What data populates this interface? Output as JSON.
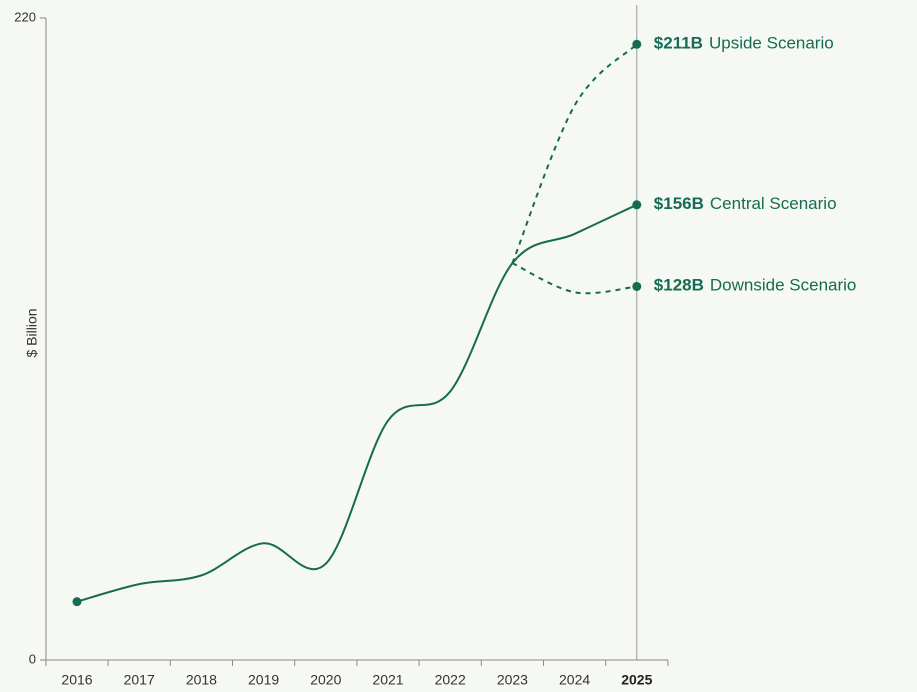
{
  "chart_data": {
    "type": "line",
    "y_label": "$ Billion",
    "categories": [
      "2016",
      "2017",
      "2018",
      "2019",
      "2020",
      "2021",
      "2022",
      "2023",
      "2024",
      "2025"
    ],
    "highlight": "2025",
    "series": [
      {
        "name": "Upside Scenario",
        "color": "#156b54",
        "dashed": true,
        "values": [
          null,
          null,
          null,
          null,
          null,
          null,
          null,
          136,
          190,
          211
        ],
        "value_labels": [
          null,
          null,
          null,
          null,
          null,
          null,
          null,
          null,
          null,
          "$211B"
        ]
      },
      {
        "name": "Central Scenario",
        "color": "#156b54",
        "dashed": false,
        "values": [
          20,
          26,
          29,
          40,
          33,
          82,
          92,
          136,
          146,
          156
        ],
        "value_labels": [
          null,
          null,
          null,
          null,
          null,
          null,
          null,
          null,
          null,
          "$156B"
        ]
      },
      {
        "name": "Downside Scenario",
        "color": "#156b54",
        "dashed": true,
        "values": [
          null,
          null,
          null,
          null,
          null,
          null,
          null,
          136,
          126,
          128
        ],
        "value_labels": [
          null,
          null,
          null,
          null,
          null,
          null,
          null,
          null,
          null,
          "$128B"
        ]
      }
    ],
    "ylim": [
      0,
      220
    ],
    "yticks": [
      0,
      220
    ]
  }
}
